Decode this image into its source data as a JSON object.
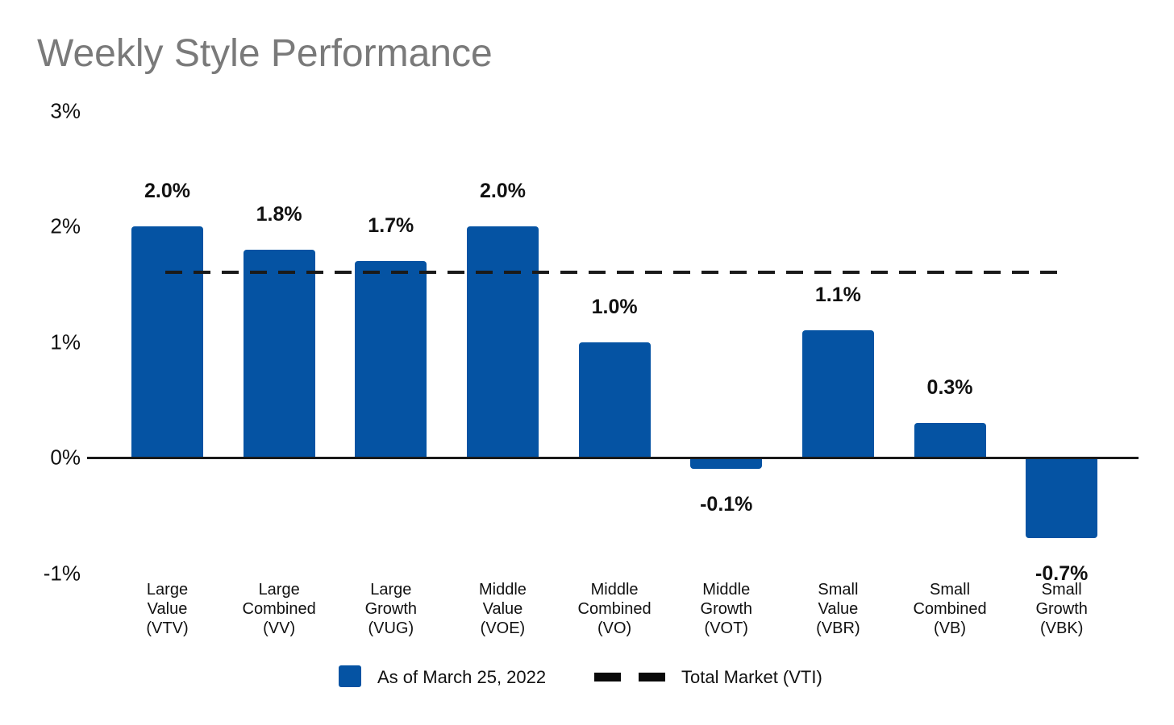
{
  "title": "Weekly Style Performance",
  "legend": {
    "series_label": "As of March 25, 2022",
    "benchmark_label": "Total Market (VTI)"
  },
  "colors": {
    "bar_blue": "#0553A3",
    "title_gray": "#7A7A7A",
    "text_black": "#111111",
    "line_black": "#1A1A1A"
  },
  "chart_data": {
    "type": "bar",
    "title": "Weekly Style Performance",
    "series_name": "As of March 25, 2022",
    "categories": [
      "Large\nValue\n(VTV)",
      "Large\nCombined\n(VV)",
      "Large\nGrowth\n(VUG)",
      "Middle\nValue\n(VOE)",
      "Middle\nCombined\n(VO)",
      "Middle\nGrowth\n(VOT)",
      "Small\nValue\n(VBR)",
      "Small\nCombined\n(VB)",
      "Small\nGrowth\n(VBK)"
    ],
    "values": [
      2.0,
      1.8,
      1.7,
      2.0,
      1.0,
      -0.1,
      1.1,
      0.3,
      -0.7
    ],
    "value_labels": [
      "2.0%",
      "1.8%",
      "1.7%",
      "2.0%",
      "1.0%",
      "-0.1%",
      "1.1%",
      "0.3%",
      "-0.7%"
    ],
    "y_ticks": [
      {
        "label": "3%",
        "value": 3
      },
      {
        "label": "2%",
        "value": 2
      },
      {
        "label": "1%",
        "value": 1
      },
      {
        "label": "0%",
        "value": 0
      },
      {
        "label": "-1%",
        "value": -1
      }
    ],
    "ylim": [
      -1,
      3
    ],
    "benchmark_line": {
      "label": "Total Market (VTI)",
      "value": 1.6,
      "style": "dashed"
    },
    "grid": false,
    "legend_position": "bottom"
  }
}
